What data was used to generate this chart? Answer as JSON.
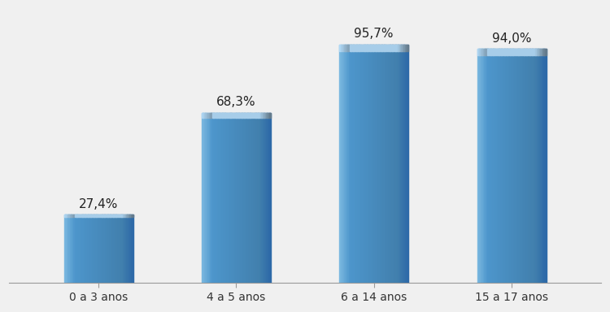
{
  "categories": [
    "0 a 3 anos",
    "4 a 5 anos",
    "6 a 14 anos",
    "15 a 17 anos"
  ],
  "values": [
    27.4,
    68.3,
    95.7,
    94.0
  ],
  "labels": [
    "27,4%",
    "68,3%",
    "95,7%",
    "94,0%"
  ],
  "bar_color_left": "#7ab8e0",
  "bar_color_center": "#5b9fd4",
  "bar_color_right": "#3a7ab5",
  "bar_color_top_light": "#aad4f0",
  "bar_color_dark_edge": "#2f6899",
  "background_color": "#f0f0f0",
  "plot_bg_color": "#f0f0f0",
  "ylim": [
    0,
    110
  ],
  "label_fontsize": 11,
  "tick_fontsize": 10,
  "bar_width": 0.5
}
